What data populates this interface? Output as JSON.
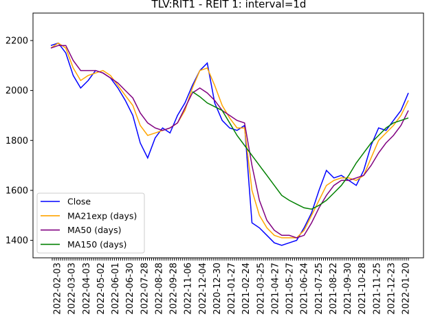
{
  "chart_data": {
    "type": "line",
    "title": "TLV:RIT1 - REIT 1: interval=1d",
    "xlabel": "",
    "ylabel": "",
    "ylim": [
      1330,
      2310
    ],
    "y_ticks": [
      1400,
      1600,
      1800,
      2000,
      2200
    ],
    "x_tick_labels": [
      "2022-02-03",
      "2022-03-03",
      "2022-04-03",
      "2022-05-02",
      "2022-06-01",
      "2022-06-30",
      "2022-07-28",
      "2022-08-28",
      "2022-09-28",
      "2022-11-06",
      "2022-12-04",
      "2020-12-30",
      "2021-01-27",
      "2021-02-24",
      "2021-03-25",
      "2021-04-27",
      "2021-05-27",
      "2021-06-24",
      "2021-07-25",
      "2021-08-22",
      "2021-09-30",
      "2021-10-28",
      "2021-11-25",
      "2021-12-23",
      "2022-01-20"
    ],
    "grid": false,
    "legend_position": "bottom-left",
    "x": [
      0,
      2,
      4,
      6,
      8,
      10,
      12,
      14,
      16,
      18,
      20,
      22,
      24,
      26,
      28,
      30,
      32,
      34,
      36,
      38,
      40,
      42,
      44,
      46,
      48,
      50,
      52,
      54,
      56,
      58,
      60,
      62,
      64,
      66,
      68,
      70,
      72,
      74,
      76,
      78,
      80,
      82,
      84,
      86,
      88,
      90,
      92,
      94,
      96
    ],
    "series": [
      {
        "name": "Close",
        "color": "#0000ff",
        "values": [
          2180,
          2190,
          2150,
          2060,
          2010,
          2040,
          2080,
          2070,
          2050,
          2010,
          1960,
          1900,
          1790,
          1730,
          1810,
          1850,
          1830,
          1900,
          1950,
          2020,
          2080,
          2110,
          1950,
          1880,
          1850,
          1840,
          1860,
          1470,
          1450,
          1420,
          1390,
          1380,
          1390,
          1400,
          1450,
          1510,
          1600,
          1680,
          1650,
          1660,
          1640,
          1620,
          1680,
          1780,
          1850,
          1840,
          1880,
          1920,
          1990
        ]
      },
      {
        "name": "MA21exp (days)",
        "color": "#ffa500",
        "values": [
          2170,
          2190,
          2170,
          2090,
          2040,
          2060,
          2070,
          2080,
          2060,
          2020,
          1980,
          1940,
          1860,
          1820,
          1830,
          1840,
          1850,
          1870,
          1920,
          2010,
          2080,
          2090,
          2020,
          1940,
          1890,
          1850,
          1850,
          1600,
          1500,
          1450,
          1420,
          1410,
          1410,
          1410,
          1440,
          1500,
          1560,
          1620,
          1640,
          1650,
          1650,
          1640,
          1660,
          1730,
          1800,
          1830,
          1860,
          1900,
          1960
        ]
      },
      {
        "name": "MA50 (days)",
        "color": "#800080",
        "values": [
          2170,
          2180,
          2180,
          2120,
          2080,
          2080,
          2080,
          2070,
          2050,
          2030,
          2000,
          1970,
          1910,
          1870,
          1850,
          1840,
          1850,
          1870,
          1930,
          1990,
          2010,
          1990,
          1960,
          1920,
          1900,
          1880,
          1870,
          1700,
          1560,
          1480,
          1440,
          1420,
          1420,
          1410,
          1420,
          1470,
          1530,
          1580,
          1620,
          1640,
          1640,
          1650,
          1660,
          1700,
          1750,
          1790,
          1820,
          1860,
          1920
        ]
      },
      {
        "name": "MA150 (days)",
        "color": "#008000",
        "values": [
          null,
          null,
          null,
          null,
          null,
          null,
          null,
          null,
          null,
          null,
          null,
          null,
          null,
          null,
          null,
          null,
          null,
          null,
          null,
          1995,
          1975,
          1950,
          1935,
          1920,
          1870,
          1820,
          1780,
          1740,
          1700,
          1660,
          1620,
          1580,
          1560,
          1545,
          1530,
          1525,
          1540,
          1560,
          1590,
          1620,
          1660,
          1710,
          1750,
          1790,
          1820,
          1850,
          1870,
          1880,
          1890
        ]
      }
    ]
  }
}
